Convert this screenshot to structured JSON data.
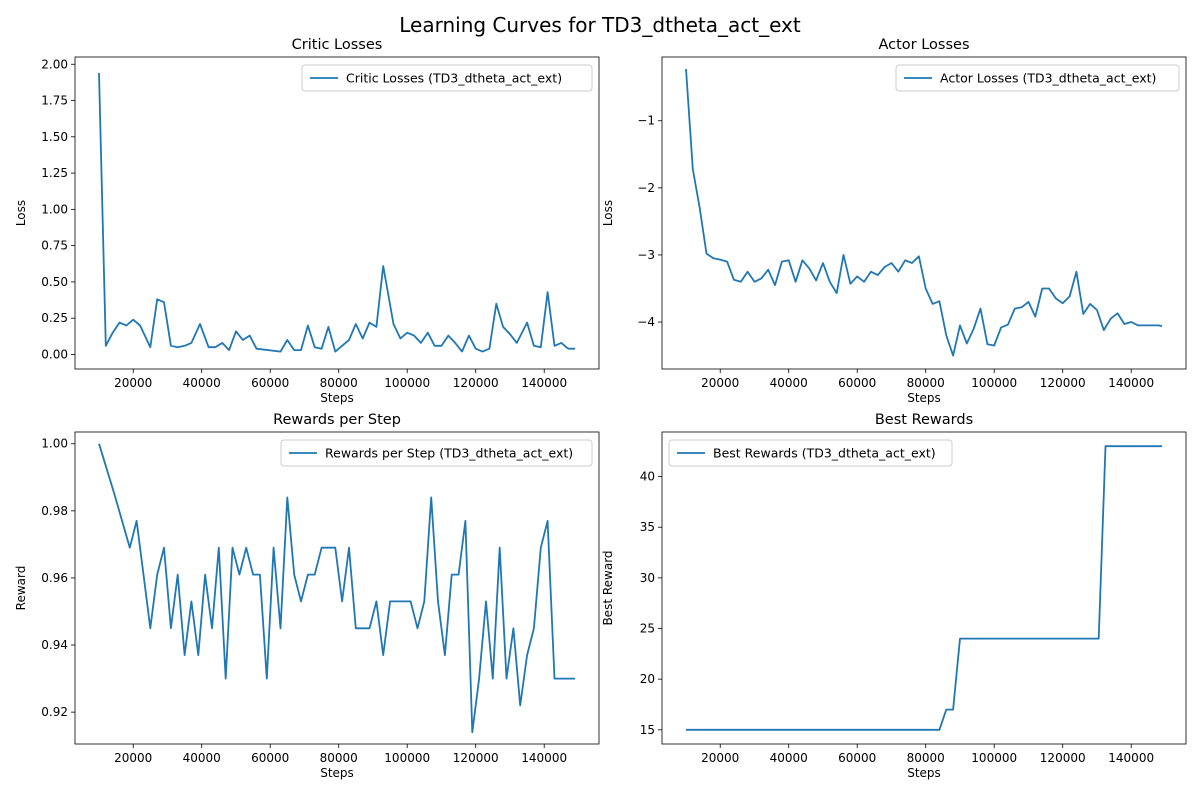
{
  "figure": {
    "title": "Learning Curves for TD3_dtheta_act_ext",
    "line_color": "#1f77b4"
  },
  "chart_data": [
    {
      "type": "line",
      "title": "Critic Losses",
      "xlabel": "Steps",
      "ylabel": "Loss",
      "xlim": [
        3000,
        156000
      ],
      "ylim": [
        -0.1,
        2.05
      ],
      "xticks": [
        20000,
        40000,
        60000,
        80000,
        100000,
        120000,
        140000
      ],
      "yticks": [
        0.0,
        0.25,
        0.5,
        0.75,
        1.0,
        1.25,
        1.5,
        1.75,
        2.0
      ],
      "ytick_labels": [
        "0.00",
        "0.25",
        "0.50",
        "0.75",
        "1.00",
        "1.25",
        "1.50",
        "1.75",
        "2.00"
      ],
      "legend": {
        "label": "Critic Losses (TD3_dtheta_act_ext)",
        "position": "upper right"
      },
      "grid": false,
      "series": [
        {
          "name": "Critic Losses (TD3_dtheta_act_ext)",
          "x": [
            10000,
            12000,
            14000,
            16000,
            18000,
            20000,
            22000,
            25000,
            27000,
            29000,
            31000,
            33000,
            35000,
            37000,
            39500,
            42000,
            44000,
            46000,
            48000,
            50000,
            52000,
            54000,
            56000,
            63000,
            65000,
            67000,
            69000,
            71000,
            73000,
            75000,
            77000,
            79000,
            81000,
            83000,
            85000,
            87000,
            89000,
            91000,
            93000,
            96000,
            98000,
            100000,
            102000,
            104000,
            106000,
            108000,
            110000,
            112000,
            114000,
            116000,
            118000,
            120000,
            122000,
            124000,
            126000,
            128000,
            130000,
            132000,
            135000,
            137000,
            139000,
            141000,
            143000,
            145000,
            147000,
            149000
          ],
          "values": [
            1.94,
            0.06,
            0.15,
            0.22,
            0.2,
            0.24,
            0.2,
            0.05,
            0.38,
            0.36,
            0.06,
            0.05,
            0.06,
            0.08,
            0.21,
            0.05,
            0.05,
            0.08,
            0.03,
            0.16,
            0.1,
            0.13,
            0.04,
            0.02,
            0.1,
            0.03,
            0.03,
            0.2,
            0.05,
            0.04,
            0.19,
            0.02,
            0.06,
            0.1,
            0.21,
            0.11,
            0.22,
            0.19,
            0.61,
            0.21,
            0.11,
            0.15,
            0.13,
            0.08,
            0.15,
            0.06,
            0.06,
            0.13,
            0.08,
            0.02,
            0.13,
            0.04,
            0.02,
            0.04,
            0.35,
            0.19,
            0.14,
            0.08,
            0.22,
            0.06,
            0.05,
            0.43,
            0.06,
            0.08,
            0.04,
            0.04
          ]
        }
      ]
    },
    {
      "type": "line",
      "title": "Actor Losses",
      "xlabel": "Steps",
      "ylabel": "Loss",
      "xlim": [
        3000,
        156000
      ],
      "ylim": [
        -4.7,
        -0.05
      ],
      "xticks": [
        20000,
        40000,
        60000,
        80000,
        100000,
        120000,
        140000
      ],
      "yticks": [
        -4,
        -3,
        -2,
        -1
      ],
      "ytick_labels": [
        "−4",
        "−3",
        "−2",
        "−1"
      ],
      "legend": {
        "label": "Actor Losses (TD3_dtheta_act_ext)",
        "position": "upper right"
      },
      "grid": false,
      "series": [
        {
          "name": "Actor Losses (TD3_dtheta_act_ext)",
          "x": [
            10000,
            12000,
            14000,
            16000,
            18000,
            20000,
            22000,
            24000,
            26000,
            28000,
            30000,
            32000,
            34000,
            36000,
            38000,
            40000,
            42000,
            44000,
            46000,
            48000,
            50000,
            52000,
            54000,
            56000,
            58000,
            60000,
            62000,
            64000,
            66000,
            68000,
            70000,
            72000,
            74000,
            76000,
            78000,
            80000,
            82000,
            84000,
            86000,
            88000,
            90000,
            92000,
            94000,
            96000,
            98000,
            100000,
            102000,
            104000,
            106000,
            108000,
            110000,
            112000,
            114000,
            116000,
            118000,
            120000,
            122000,
            124000,
            126000,
            128000,
            130000,
            132000,
            134000,
            136000,
            138000,
            140000,
            142000,
            144000,
            146000,
            148000,
            149000
          ],
          "values": [
            -0.23,
            -1.72,
            -2.3,
            -2.98,
            -3.05,
            -3.07,
            -3.1,
            -3.37,
            -3.4,
            -3.25,
            -3.4,
            -3.35,
            -3.22,
            -3.45,
            -3.1,
            -3.08,
            -3.4,
            -3.08,
            -3.2,
            -3.38,
            -3.12,
            -3.4,
            -3.57,
            -3.0,
            -3.43,
            -3.32,
            -3.4,
            -3.25,
            -3.3,
            -3.18,
            -3.12,
            -3.25,
            -3.08,
            -3.12,
            -3.02,
            -3.5,
            -3.73,
            -3.69,
            -4.2,
            -4.5,
            -4.05,
            -4.32,
            -4.1,
            -3.8,
            -4.33,
            -4.35,
            -4.08,
            -4.04,
            -3.8,
            -3.78,
            -3.7,
            -3.92,
            -3.5,
            -3.5,
            -3.65,
            -3.72,
            -3.62,
            -3.25,
            -3.88,
            -3.73,
            -3.82,
            -4.12,
            -3.95,
            -3.87,
            -4.03,
            -4.0,
            -4.05,
            -4.05,
            -4.05,
            -4.05,
            -4.06
          ]
        }
      ]
    },
    {
      "type": "line",
      "title": "Rewards per Step",
      "xlabel": "Steps",
      "ylabel": "Reward",
      "xlim": [
        3000,
        156000
      ],
      "ylim": [
        0.9105,
        1.0035
      ],
      "xticks": [
        20000,
        40000,
        60000,
        80000,
        100000,
        120000,
        140000
      ],
      "yticks": [
        0.92,
        0.94,
        0.96,
        0.98,
        1.0
      ],
      "ytick_labels": [
        "0.92",
        "0.94",
        "0.96",
        "0.98",
        "1.00"
      ],
      "legend": {
        "label": "Rewards per Step (TD3_dtheta_act_ext)",
        "position": "upper right"
      },
      "grid": false,
      "series": [
        {
          "name": "Rewards per Step (TD3_dtheta_act_ext)",
          "x": [
            10000,
            14500,
            19000,
            21000,
            23000,
            25000,
            27000,
            29000,
            31000,
            33000,
            35000,
            37000,
            39000,
            41000,
            43000,
            45000,
            47000,
            49000,
            51000,
            53000,
            55000,
            57000,
            59000,
            61000,
            63000,
            65000,
            67000,
            69000,
            71000,
            73000,
            75000,
            77000,
            79000,
            81000,
            83000,
            85000,
            87000,
            89000,
            91000,
            93000,
            95000,
            97000,
            99000,
            101000,
            103000,
            105000,
            107000,
            109000,
            111000,
            113000,
            115000,
            117000,
            119000,
            121000,
            123000,
            125000,
            127000,
            129000,
            131000,
            133000,
            135000,
            137000,
            139000,
            141000,
            143000,
            145000,
            147000,
            149000
          ],
          "values": [
            1.0,
            0.985,
            0.969,
            0.977,
            0.961,
            0.945,
            0.961,
            0.969,
            0.945,
            0.961,
            0.937,
            0.953,
            0.937,
            0.961,
            0.945,
            0.969,
            0.93,
            0.969,
            0.961,
            0.969,
            0.961,
            0.961,
            0.93,
            0.969,
            0.945,
            0.984,
            0.961,
            0.953,
            0.961,
            0.961,
            0.969,
            0.969,
            0.969,
            0.953,
            0.969,
            0.945,
            0.945,
            0.945,
            0.953,
            0.937,
            0.953,
            0.953,
            0.953,
            0.953,
            0.945,
            0.953,
            0.984,
            0.953,
            0.937,
            0.961,
            0.961,
            0.977,
            0.914,
            0.93,
            0.953,
            0.93,
            0.969,
            0.93,
            0.945,
            0.922,
            0.937,
            0.945,
            0.969,
            0.977,
            0.93,
            0.93,
            0.93,
            0.93
          ]
        }
      ]
    },
    {
      "type": "line",
      "title": "Best Rewards",
      "xlabel": "Steps",
      "ylabel": "Best Reward",
      "xlim": [
        3000,
        156000
      ],
      "ylim": [
        13.6,
        44.4
      ],
      "xticks": [
        20000,
        40000,
        60000,
        80000,
        100000,
        120000,
        140000
      ],
      "yticks": [
        15,
        20,
        25,
        30,
        35,
        40
      ],
      "ytick_labels": [
        "15",
        "20",
        "25",
        "30",
        "35",
        "40"
      ],
      "legend": {
        "label": "Best Rewards (TD3_dtheta_act_ext)",
        "position": "upper left"
      },
      "grid": false,
      "series": [
        {
          "name": "Best Rewards (TD3_dtheta_act_ext)",
          "x": [
            10000,
            84000,
            86000,
            88000,
            90000,
            130500,
            132500,
            149000
          ],
          "values": [
            15,
            15,
            17,
            17,
            24,
            24,
            43,
            43
          ]
        }
      ]
    }
  ]
}
